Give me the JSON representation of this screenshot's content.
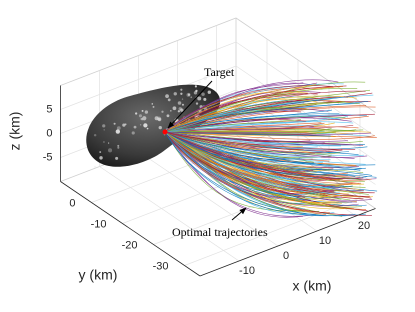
{
  "chart_data": {
    "type": "trajectory3d",
    "xlabel": "x (km)",
    "ylabel": "y (km)",
    "zlabel": "z (km)",
    "xlim": [
      -20,
      25
    ],
    "ylim": [
      -35,
      10
    ],
    "zlim": [
      -10,
      10
    ],
    "xticks": [
      -10,
      0,
      10,
      20
    ],
    "yticks": [
      -30,
      -20,
      -10,
      0
    ],
    "zticks": [
      -5,
      0,
      5
    ],
    "grid": true,
    "annotations": [
      {
        "text": "Target"
      },
      {
        "text": "Optimal trajectories"
      }
    ],
    "target_color": "#ff0000",
    "trajectory_colors": [
      "#0072bd",
      "#d95319",
      "#edb120",
      "#7e2f8e",
      "#77ac30",
      "#4dbeee",
      "#a2142f"
    ]
  }
}
